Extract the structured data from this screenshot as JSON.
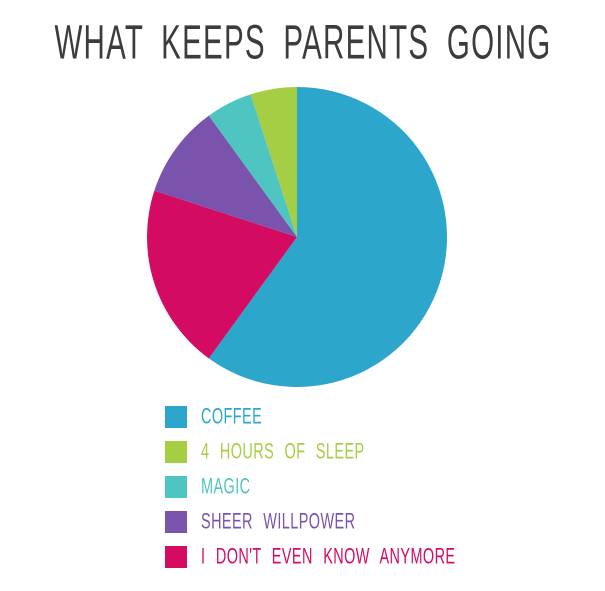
{
  "title_color": "#3c3c3c",
  "background_color": "#ffffff",
  "chart_data": {
    "type": "pie",
    "title": "WHAT KEEPS PARENTS GOING",
    "values_unit": "percent",
    "legend_position": "bottom",
    "start_angle_deg": 0,
    "direction": "clockwise",
    "draw_order_indices": [
      0,
      4,
      3,
      2,
      1
    ],
    "slices": [
      {
        "label": "COFFEE",
        "value": 60,
        "color": "#2da6cb"
      },
      {
        "label": "4 HOURS OF SLEEP",
        "value": 5,
        "color": "#a6ce44"
      },
      {
        "label": "MAGIC",
        "value": 5,
        "color": "#4fc5c2"
      },
      {
        "label": "SHEER WILLPOWER",
        "value": 10,
        "color": "#7a53ad"
      },
      {
        "label": "I DON'T EVEN KNOW ANYMORE",
        "value": 20,
        "color": "#d30b63"
      }
    ]
  }
}
